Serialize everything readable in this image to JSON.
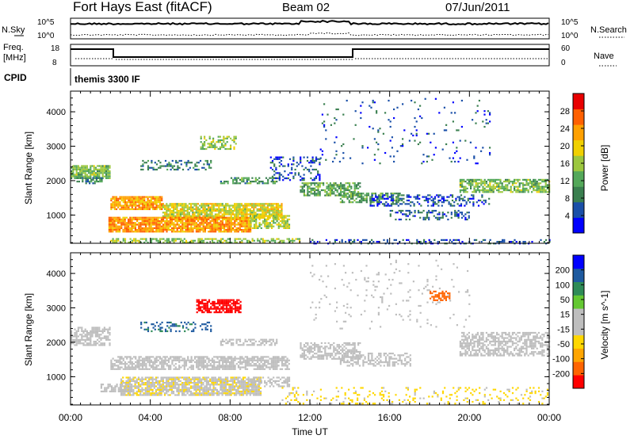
{
  "header": {
    "title": "Fort Hays East (fitACF)",
    "beam": "Beam 02",
    "date": "07/Jun/2011"
  },
  "noise_panel": {
    "left_label": "N.Sky",
    "right_label": "N.Search",
    "left_ticks": [
      "10^5",
      "10^0"
    ],
    "right_ticks": [
      "10^5",
      "10^0"
    ]
  },
  "freq_panel": {
    "left_label_1": "Freq.",
    "left_label_2": "[MHz]",
    "right_label": "Nave",
    "left_ticks": [
      "18",
      "8"
    ],
    "right_ticks": [
      "60",
      "0"
    ]
  },
  "cpid": {
    "label": "CPID",
    "value": "themis 3300 IF"
  },
  "colors": {
    "power": [
      "#0000ff",
      "#1a4fa8",
      "#3a7f4f",
      "#54a85a",
      "#9cc73f",
      "#f0d000",
      "#ffa000",
      "#ff6000",
      "#e80000"
    ],
    "velocity": [
      "#ff0000",
      "#ff6400",
      "#ffa500",
      "#ffd700",
      "#bebebe",
      "#bebebe",
      "#64c832",
      "#2e8b57",
      "#1e5aa0",
      "#0000ff"
    ]
  },
  "chart_data": [
    {
      "type": "heatmap",
      "title": "Power",
      "ylabel": "Slant Range [km]",
      "xlabel": "Time UT",
      "colorbar_label": "Power [dB]",
      "colorbar_ticks": [
        "4",
        "8",
        "12",
        "16",
        "20",
        "24",
        "28"
      ],
      "clim": [
        0,
        30
      ],
      "xlim": [
        0,
        24
      ],
      "ylim": [
        180,
        4600
      ],
      "yticks": [
        "1000",
        "2000",
        "3000",
        "4000"
      ],
      "xticks": [
        "00:00",
        "04:00",
        "08:00",
        "12:00",
        "16:00",
        "20:00",
        "00:00"
      ],
      "blobs": [
        {
          "t0": 0.0,
          "t1": 2.0,
          "r0": 2050,
          "r1": 2450,
          "v": 13,
          "d": 0.85
        },
        {
          "t0": 0.3,
          "t1": 1.6,
          "r0": 1900,
          "r1": 2100,
          "v": 9,
          "d": 0.5
        },
        {
          "t0": 2.0,
          "t1": 4.6,
          "r0": 1150,
          "r1": 1550,
          "v": 22,
          "d": 0.9
        },
        {
          "t0": 4.6,
          "t1": 10.6,
          "r0": 900,
          "r1": 1350,
          "v": 17,
          "d": 0.85
        },
        {
          "t0": 1.9,
          "t1": 9.0,
          "r0": 500,
          "r1": 950,
          "v": 22,
          "d": 0.9
        },
        {
          "t0": 9.0,
          "t1": 11.0,
          "r0": 600,
          "r1": 1000,
          "v": 16,
          "d": 0.7
        },
        {
          "t0": 2.0,
          "t1": 11.5,
          "r0": 200,
          "r1": 330,
          "v": 14,
          "d": 0.55
        },
        {
          "t0": 6.5,
          "t1": 8.3,
          "r0": 2900,
          "r1": 3300,
          "v": 14,
          "d": 0.5
        },
        {
          "t0": 3.5,
          "t1": 7.0,
          "r0": 2300,
          "r1": 2600,
          "v": 8,
          "d": 0.35
        },
        {
          "t0": 7.5,
          "t1": 10.3,
          "r0": 1900,
          "r1": 2100,
          "v": 10,
          "d": 0.55
        },
        {
          "t0": 10.0,
          "t1": 12.5,
          "r0": 2000,
          "r1": 2700,
          "v": 5,
          "d": 0.3
        },
        {
          "t0": 11.5,
          "t1": 14.5,
          "r0": 1550,
          "r1": 1950,
          "v": 11,
          "d": 0.65
        },
        {
          "t0": 13.5,
          "t1": 16.5,
          "r0": 1350,
          "r1": 1650,
          "v": 11,
          "d": 0.55
        },
        {
          "t0": 15.0,
          "t1": 21.0,
          "r0": 1250,
          "r1": 1600,
          "v": 5,
          "d": 0.4
        },
        {
          "t0": 16.0,
          "t1": 20.0,
          "r0": 850,
          "r1": 1150,
          "v": 6,
          "d": 0.35
        },
        {
          "t0": 19.5,
          "t1": 24.0,
          "r0": 1650,
          "r1": 2050,
          "v": 13,
          "d": 0.7
        },
        {
          "t0": 12.0,
          "t1": 24.0,
          "r0": 180,
          "r1": 300,
          "v": 5,
          "d": 0.3
        },
        {
          "t0": 12.5,
          "t1": 21.0,
          "r0": 2500,
          "r1": 4400,
          "v": 5,
          "d": 0.04
        }
      ]
    },
    {
      "type": "heatmap",
      "title": "Velocity",
      "ylabel": "Slant Range [km]",
      "xlabel": "Time UT",
      "colorbar_label": "Velocity [m s^-1]",
      "colorbar_ticks": [
        "-200",
        "-100",
        "-50",
        "-15",
        "15",
        "50",
        "100",
        "200"
      ],
      "clim": [
        -250,
        250
      ],
      "xlim": [
        0,
        24
      ],
      "ylim": [
        180,
        4600
      ],
      "yticks": [
        "1000",
        "2000",
        "3000",
        "4000"
      ],
      "xticks": [
        "00:00",
        "04:00",
        "08:00",
        "12:00",
        "16:00",
        "20:00",
        "00:00"
      ],
      "blobs": [
        {
          "t0": 0.0,
          "t1": 2.0,
          "r0": 1900,
          "r1": 2450,
          "v": 0,
          "d": 0.6
        },
        {
          "t0": 2.0,
          "t1": 11.0,
          "r0": 1200,
          "r1": 1600,
          "v": 0,
          "d": 0.7
        },
        {
          "t0": 2.5,
          "t1": 9.5,
          "r0": 450,
          "r1": 1000,
          "v": -40,
          "d": 0.8
        },
        {
          "t0": 1.5,
          "t1": 3.0,
          "r0": 550,
          "r1": 800,
          "v": 25,
          "d": 0.7
        },
        {
          "t0": 9.0,
          "t1": 11.0,
          "r0": 700,
          "r1": 1000,
          "v": 0,
          "d": 0.5
        },
        {
          "t0": 6.3,
          "t1": 8.5,
          "r0": 2850,
          "r1": 3250,
          "v": -230,
          "d": 0.7
        },
        {
          "t0": 3.5,
          "t1": 7.0,
          "r0": 2300,
          "r1": 2600,
          "v": 160,
          "d": 0.3
        },
        {
          "t0": 7.5,
          "t1": 10.3,
          "r0": 1900,
          "r1": 2100,
          "v": 0,
          "d": 0.5
        },
        {
          "t0": 11.5,
          "t1": 14.5,
          "r0": 1500,
          "r1": 2000,
          "v": 0,
          "d": 0.6
        },
        {
          "t0": 13.5,
          "t1": 17.0,
          "r0": 1300,
          "r1": 1700,
          "v": 0,
          "d": 0.5
        },
        {
          "t0": 19.5,
          "t1": 24.0,
          "r0": 1600,
          "r1": 2300,
          "v": 0,
          "d": 0.6
        },
        {
          "t0": 18.0,
          "t1": 19.0,
          "r0": 3200,
          "r1": 3500,
          "v": -180,
          "d": 0.6
        },
        {
          "t0": 10.5,
          "t1": 24.0,
          "r0": 200,
          "r1": 700,
          "v": -60,
          "d": 0.15
        },
        {
          "t0": 12.0,
          "t1": 20.0,
          "r0": 2400,
          "r1": 4400,
          "v": 0,
          "d": 0.04
        }
      ]
    }
  ]
}
